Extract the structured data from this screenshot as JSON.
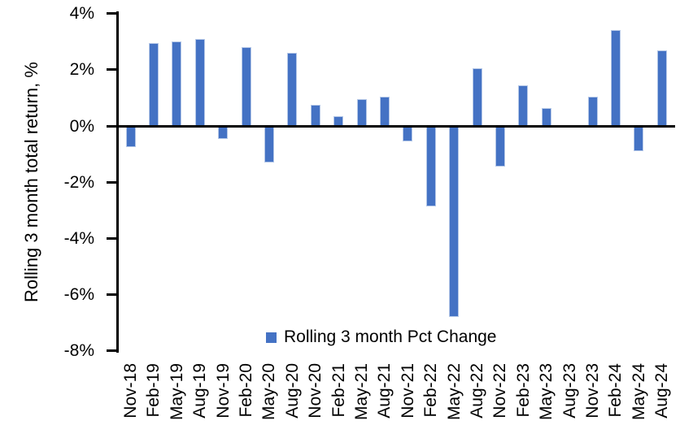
{
  "chart_data": {
    "type": "bar",
    "categories": [
      "Nov-18",
      "Feb-19",
      "May-19",
      "Aug-19",
      "Nov-19",
      "Feb-20",
      "May-20",
      "Aug-20",
      "Nov-20",
      "Feb-21",
      "May-21",
      "Aug-21",
      "Nov-21",
      "Feb-22",
      "May-22",
      "Aug-22",
      "Nov-22",
      "Feb-23",
      "May-23",
      "Aug-23",
      "Nov-23",
      "Feb-24",
      "May-24",
      "Aug-24"
    ],
    "values": [
      -0.75,
      2.95,
      3.0,
      3.1,
      -0.45,
      2.8,
      -1.3,
      2.6,
      0.75,
      0.35,
      0.95,
      1.05,
      -0.55,
      -2.85,
      -6.8,
      2.05,
      -1.45,
      1.45,
      0.65,
      0.0,
      1.05,
      3.4,
      -0.9,
      2.7
    ],
    "title": "",
    "xlabel": "",
    "ylabel": "Rolling 3 month total return, %",
    "ylim": [
      -8,
      4
    ],
    "yticks": [
      4,
      2,
      0,
      -2,
      -4,
      -6,
      -8
    ],
    "ytick_labels": [
      "4%",
      "2%",
      "0%",
      "-2%",
      "-4%",
      "-6%",
      "-8%"
    ],
    "grid": false,
    "legend_label": "Rolling 3 month Pct Change",
    "legend_position": "bottom-center-inside",
    "bar_color": "#4472C4",
    "bar_border_color": "#B4C7E7",
    "axis_color": "#000000"
  }
}
